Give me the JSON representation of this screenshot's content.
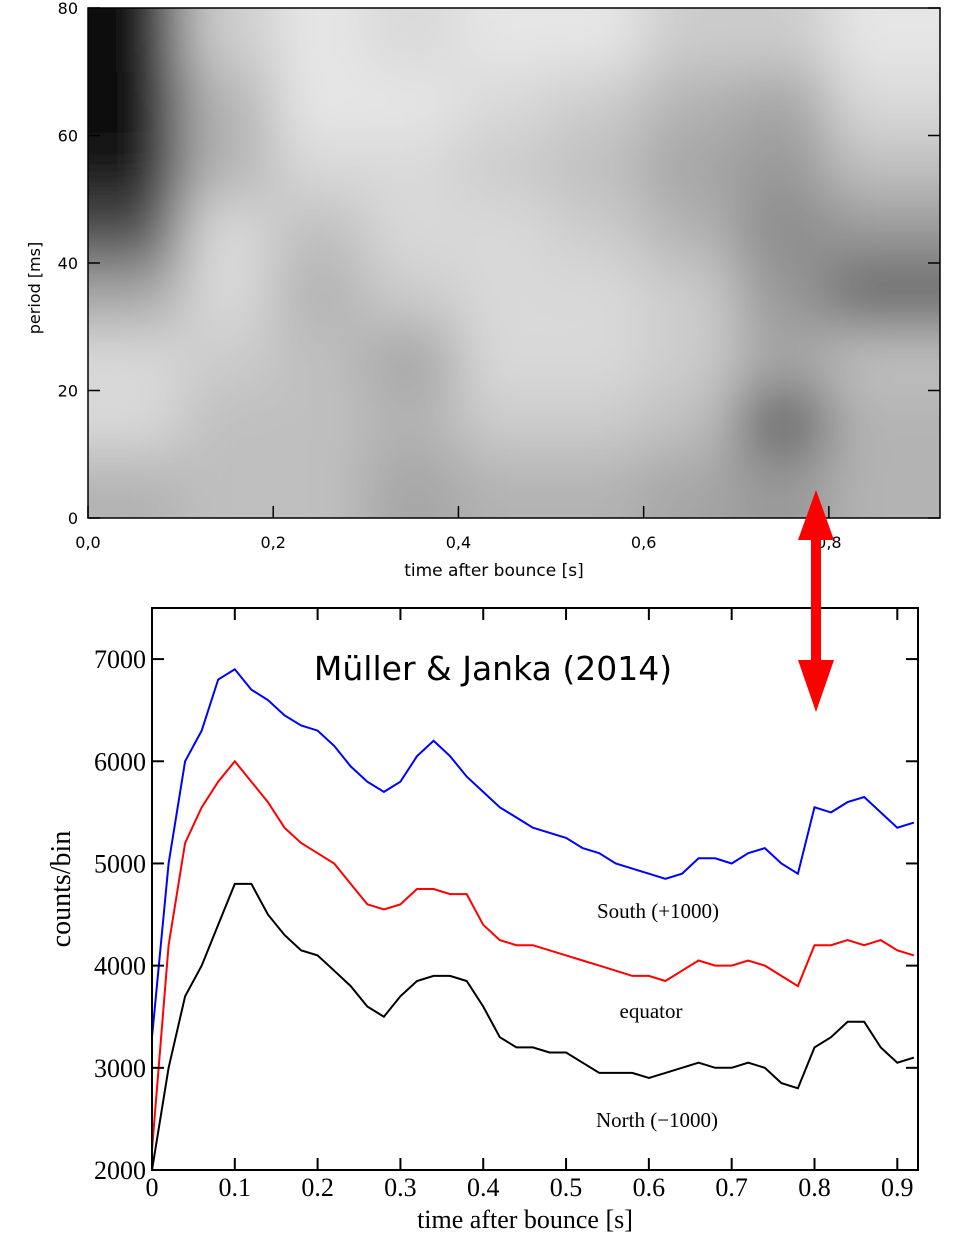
{
  "chart_data": [
    {
      "type": "heatmap",
      "xlabel": "time after bounce [s]",
      "ylabel": "period [ms]",
      "xlim": [
        0,
        0.92
      ],
      "ylim": [
        0,
        80
      ],
      "xticks": [
        {
          "value": 0,
          "label": "0,0"
        },
        {
          "value": 0.2,
          "label": "0,2"
        },
        {
          "value": 0.4,
          "label": "0,4"
        },
        {
          "value": 0.6,
          "label": "0,6"
        },
        {
          "value": 0.8,
          "label": "0,8"
        }
      ],
      "yticks": [
        0,
        20,
        40,
        60,
        80
      ],
      "x": [
        0.05,
        0.15,
        0.25,
        0.35,
        0.45,
        0.55,
        0.65,
        0.75,
        0.85
      ],
      "y": [
        5,
        15,
        25,
        35,
        45,
        55,
        65,
        75
      ],
      "z": [
        [
          0.3,
          0.25,
          0.25,
          0.35,
          0.3,
          0.3,
          0.35,
          0.4,
          0.3
        ],
        [
          0.15,
          0.25,
          0.25,
          0.3,
          0.2,
          0.2,
          0.25,
          0.6,
          0.3
        ],
        [
          0.15,
          0.2,
          0.25,
          0.35,
          0.15,
          0.15,
          0.2,
          0.35,
          0.25
        ],
        [
          0.35,
          0.15,
          0.3,
          0.2,
          0.15,
          0.15,
          0.2,
          0.4,
          0.6
        ],
        [
          0.7,
          0.15,
          0.25,
          0.15,
          0.15,
          0.2,
          0.3,
          0.45,
          0.4
        ],
        [
          0.9,
          0.3,
          0.15,
          0.15,
          0.2,
          0.25,
          0.35,
          0.4,
          0.25
        ],
        [
          0.95,
          0.3,
          0.1,
          0.1,
          0.15,
          0.2,
          0.3,
          0.35,
          0.15
        ],
        [
          0.95,
          0.2,
          0.1,
          0.15,
          0.1,
          0.1,
          0.2,
          0.2,
          0.1
        ]
      ]
    },
    {
      "type": "line",
      "title": "Müller & Janka (2014)",
      "xlabel": "time after bounce [s]",
      "ylabel": "counts/bin",
      "xlim": [
        0,
        0.925
      ],
      "ylim": [
        2000,
        7500
      ],
      "xticks": [
        0,
        0.1,
        0.2,
        0.3,
        0.4,
        0.5,
        0.6,
        0.7,
        0.8,
        0.9
      ],
      "yticks": [
        2000,
        3000,
        4000,
        5000,
        6000,
        7000
      ],
      "x": [
        0,
        0.02,
        0.04,
        0.06,
        0.08,
        0.1,
        0.12,
        0.14,
        0.16,
        0.18,
        0.2,
        0.22,
        0.24,
        0.26,
        0.28,
        0.3,
        0.32,
        0.34,
        0.36,
        0.38,
        0.4,
        0.42,
        0.44,
        0.46,
        0.48,
        0.5,
        0.52,
        0.54,
        0.56,
        0.58,
        0.6,
        0.62,
        0.64,
        0.66,
        0.68,
        0.7,
        0.72,
        0.74,
        0.76,
        0.78,
        0.8,
        0.82,
        0.84,
        0.86,
        0.88,
        0.9,
        0.92
      ],
      "series": [
        {
          "name": "South (+1000)",
          "color": "#0000ff",
          "values": [
            3300,
            5000,
            6000,
            6300,
            6800,
            6900,
            6700,
            6600,
            6450,
            6350,
            6300,
            6150,
            5950,
            5800,
            5700,
            5800,
            6050,
            6200,
            6050,
            5850,
            5700,
            5550,
            5450,
            5350,
            5300,
            5250,
            5150,
            5100,
            5000,
            4950,
            4900,
            4850,
            4900,
            5050,
            5050,
            5000,
            5100,
            5150,
            5000,
            4900,
            5550,
            5500,
            5600,
            5650,
            5500,
            5350,
            5400
          ]
        },
        {
          "name": "equator",
          "color": "#ff0000",
          "values": [
            2200,
            4200,
            5200,
            5550,
            5800,
            6000,
            5800,
            5600,
            5350,
            5200,
            5100,
            5000,
            4800,
            4600,
            4550,
            4600,
            4750,
            4750,
            4700,
            4700,
            4400,
            4250,
            4200,
            4200,
            4150,
            4100,
            4050,
            4000,
            3950,
            3900,
            3900,
            3850,
            3950,
            4050,
            4000,
            4000,
            4050,
            4000,
            3900,
            3800,
            4200,
            4200,
            4250,
            4200,
            4250,
            4150,
            4100
          ]
        },
        {
          "name": "North (−1000)",
          "color": "#000000",
          "values": [
            2000,
            3000,
            3700,
            4000,
            4400,
            4800,
            4800,
            4500,
            4300,
            4150,
            4100,
            3950,
            3800,
            3600,
            3500,
            3700,
            3850,
            3900,
            3900,
            3850,
            3600,
            3300,
            3200,
            3200,
            3150,
            3150,
            3050,
            2950,
            2950,
            2950,
            2900,
            2950,
            3000,
            3050,
            3000,
            3000,
            3050,
            3000,
            2850,
            2800,
            3200,
            3300,
            3450,
            3450,
            3200,
            3050,
            3100
          ]
        }
      ]
    }
  ]
}
